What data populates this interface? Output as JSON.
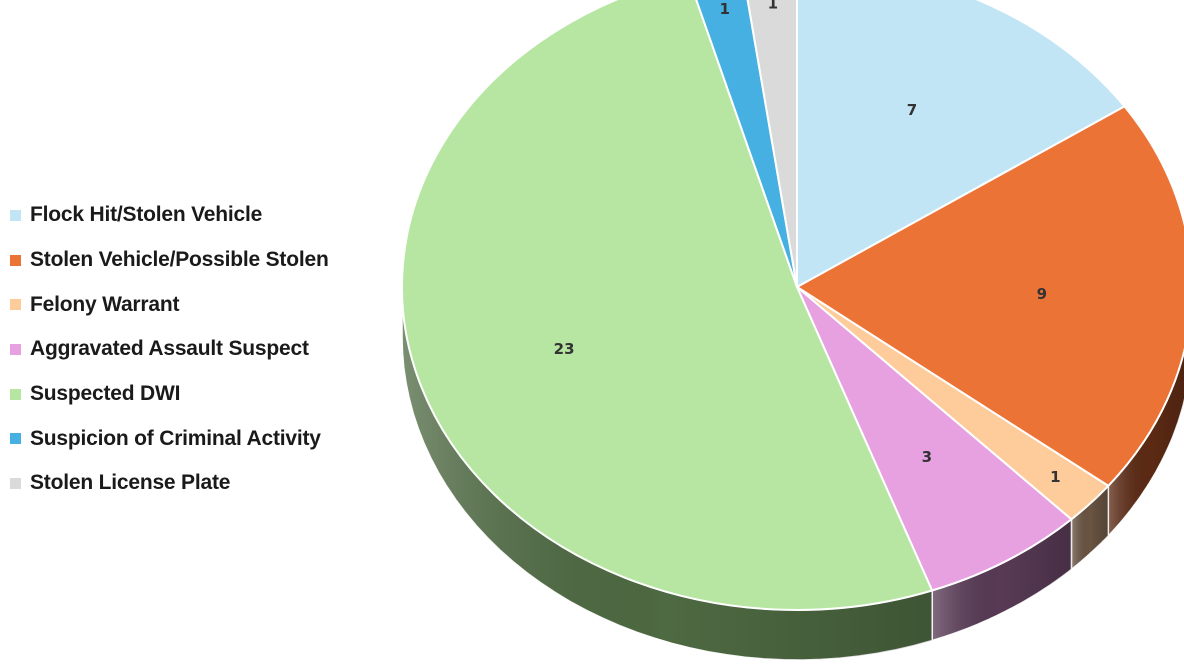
{
  "chart_data": {
    "type": "pie",
    "title": "",
    "legend_position": "left",
    "categories": [
      "Flock Hit/Stolen Vehicle",
      "Stolen Vehicle/Possible Stolen",
      "Felony Warrant",
      "Aggravated Assault Suspect",
      "Suspected DWI",
      "Suspicion of Criminal Activity",
      "Stolen License Plate"
    ],
    "values": [
      7,
      9,
      1,
      3,
      23,
      1,
      1
    ],
    "data_labels": [
      "7",
      "9",
      "1",
      "3",
      "23",
      "1",
      "1"
    ],
    "colors": [
      "#c2e5f5",
      "#ec7336",
      "#fdcc9a",
      "#e7a1e1",
      "#b7e6a3",
      "#45b0e1",
      "#dadada"
    ],
    "side_colors": [
      "#8aa9b8",
      "#5c2a14",
      "#6a5442",
      "#583a55",
      "#4e6a42",
      "#1f5570",
      "#8a8a8a"
    ]
  }
}
